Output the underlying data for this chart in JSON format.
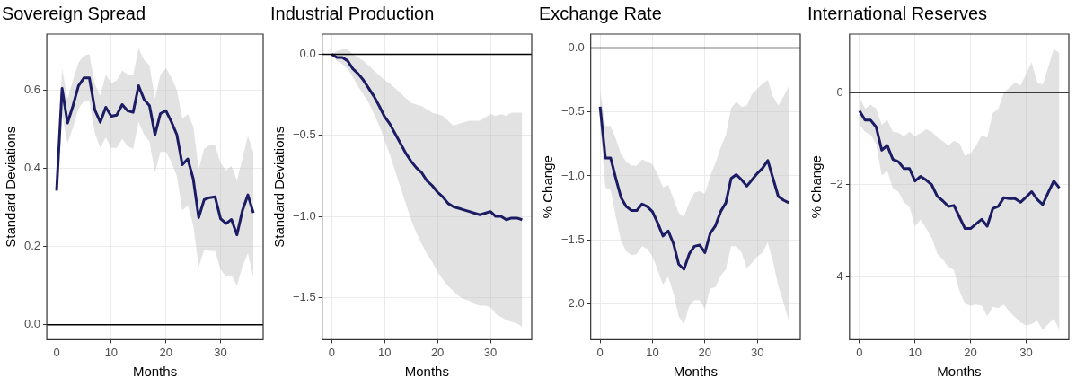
{
  "chart_data": [
    {
      "type": "line",
      "title": "Sovereign Spread",
      "xlabel": "Months",
      "ylabel": "Standard Deviations",
      "grid": true,
      "x": [
        0,
        1,
        2,
        3,
        4,
        5,
        6,
        7,
        8,
        9,
        10,
        11,
        12,
        13,
        14,
        15,
        16,
        17,
        18,
        19,
        20,
        21,
        22,
        23,
        24,
        25,
        26,
        27,
        28,
        29,
        30,
        31,
        32,
        33,
        34,
        35,
        36
      ],
      "series": [
        {
          "color": "#1c1c64",
          "values": [
            0.343,
            0.604,
            0.516,
            0.56,
            0.611,
            0.631,
            0.631,
            0.549,
            0.518,
            0.556,
            0.533,
            0.536,
            0.563,
            0.547,
            0.543,
            0.611,
            0.576,
            0.56,
            0.486,
            0.54,
            0.547,
            0.519,
            0.486,
            0.409,
            0.424,
            0.373,
            0.274,
            0.32,
            0.325,
            0.327,
            0.271,
            0.259,
            0.269,
            0.23,
            0.292,
            0.332,
            0.286
          ],
          "upper": [
            0.36,
            0.655,
            0.578,
            0.626,
            0.67,
            0.688,
            0.692,
            0.615,
            0.585,
            0.64,
            0.618,
            0.624,
            0.65,
            0.64,
            0.638,
            0.707,
            0.677,
            0.663,
            0.578,
            0.64,
            0.655,
            0.633,
            0.6,
            0.527,
            0.538,
            0.508,
            0.398,
            0.45,
            0.459,
            0.459,
            0.413,
            0.395,
            0.406,
            0.369,
            0.424,
            0.483,
            0.442
          ],
          "lower": [
            0.33,
            0.534,
            0.464,
            0.505,
            0.552,
            0.572,
            0.571,
            0.49,
            0.452,
            0.479,
            0.452,
            0.452,
            0.475,
            0.457,
            0.45,
            0.519,
            0.486,
            0.468,
            0.389,
            0.442,
            0.442,
            0.417,
            0.38,
            0.292,
            0.306,
            0.255,
            0.149,
            0.191,
            0.189,
            0.189,
            0.142,
            0.123,
            0.127,
            0.1,
            0.149,
            0.183,
            0.123
          ]
        }
      ],
      "xlim": [
        -1.8,
        37.8
      ],
      "ylim": [
        -0.038,
        0.743
      ],
      "xticks": [
        0,
        10,
        20,
        30
      ],
      "yticks": [
        {
          "value": 0,
          "label": "0.0"
        },
        {
          "value": 0.2,
          "label": "0.2"
        },
        {
          "value": 0.4,
          "label": "0.4"
        },
        {
          "value": 0.6,
          "label": "0.6"
        }
      ],
      "ref_lines": [
        {
          "axis": "y",
          "value": 0,
          "color": "#000000"
        }
      ]
    },
    {
      "type": "line",
      "title": "Industrial Production",
      "xlabel": "Months",
      "ylabel": "Standard Deviations",
      "grid": true,
      "x": [
        0,
        1,
        2,
        3,
        4,
        5,
        6,
        7,
        8,
        9,
        10,
        11,
        12,
        13,
        14,
        15,
        16,
        17,
        18,
        19,
        20,
        21,
        22,
        23,
        24,
        25,
        26,
        27,
        28,
        29,
        30,
        31,
        32,
        33,
        34,
        35,
        36
      ],
      "series": [
        {
          "color": "#1c1c64",
          "values": [
            0,
            -0.02,
            -0.02,
            -0.04,
            -0.09,
            -0.12,
            -0.16,
            -0.21,
            -0.26,
            -0.32,
            -0.385,
            -0.43,
            -0.49,
            -0.55,
            -0.61,
            -0.66,
            -0.7,
            -0.73,
            -0.78,
            -0.81,
            -0.85,
            -0.88,
            -0.92,
            -0.94,
            -0.95,
            -0.96,
            -0.97,
            -0.98,
            -0.99,
            -0.98,
            -0.97,
            -1.0,
            -1.0,
            -1.02,
            -1.01,
            -1.01,
            -1.02
          ],
          "upper": [
            0,
            0.02,
            0.03,
            0.03,
            0,
            -0.02,
            -0.04,
            -0.07,
            -0.1,
            -0.13,
            -0.16,
            -0.18,
            -0.21,
            -0.24,
            -0.27,
            -0.3,
            -0.31,
            -0.32,
            -0.34,
            -0.36,
            -0.37,
            -0.38,
            -0.41,
            -0.44,
            -0.43,
            -0.42,
            -0.41,
            -0.41,
            -0.41,
            -0.39,
            -0.37,
            -0.38,
            -0.37,
            -0.38,
            -0.36,
            -0.36,
            -0.36
          ],
          "lower": [
            0,
            -0.04,
            -0.06,
            -0.09,
            -0.14,
            -0.2,
            -0.25,
            -0.3,
            -0.37,
            -0.44,
            -0.53,
            -0.62,
            -0.72,
            -0.82,
            -0.92,
            -1.02,
            -1.1,
            -1.17,
            -1.23,
            -1.28,
            -1.34,
            -1.39,
            -1.43,
            -1.46,
            -1.49,
            -1.51,
            -1.52,
            -1.54,
            -1.55,
            -1.55,
            -1.56,
            -1.6,
            -1.62,
            -1.64,
            -1.65,
            -1.66,
            -1.68
          ]
        }
      ],
      "xlim": [
        -1.8,
        37.8
      ],
      "ylim": [
        -1.76,
        0.124
      ],
      "xticks": [
        0,
        10,
        20,
        30
      ],
      "yticks": [
        {
          "value": -1.5,
          "label": "−1.5"
        },
        {
          "value": -1,
          "label": "−1.0"
        },
        {
          "value": -0.5,
          "label": "−0.5"
        },
        {
          "value": 0,
          "label": "0.0"
        }
      ],
      "ref_lines": [
        {
          "axis": "y",
          "value": 0,
          "color": "#000000"
        }
      ]
    },
    {
      "type": "line",
      "title": "Exchange Rate",
      "xlabel": "Months",
      "ylabel": "% Change",
      "grid": true,
      "x": [
        0,
        1,
        2,
        3,
        4,
        5,
        6,
        7,
        8,
        9,
        10,
        11,
        12,
        13,
        14,
        15,
        16,
        17,
        18,
        19,
        20,
        21,
        22,
        23,
        24,
        25,
        26,
        27,
        28,
        29,
        30,
        31,
        32,
        33,
        34,
        35,
        36
      ],
      "series": [
        {
          "color": "#1c1c64",
          "values": [
            -0.46,
            -0.86,
            -0.86,
            -1.02,
            -1.17,
            -1.24,
            -1.27,
            -1.27,
            -1.22,
            -1.24,
            -1.28,
            -1.37,
            -1.47,
            -1.43,
            -1.53,
            -1.69,
            -1.73,
            -1.61,
            -1.55,
            -1.54,
            -1.6,
            -1.45,
            -1.39,
            -1.28,
            -1.21,
            -1.02,
            -0.99,
            -1.03,
            -1.08,
            -1.03,
            -0.98,
            -0.94,
            -0.88,
            -1.02,
            -1.16,
            -1.19,
            -1.21
          ],
          "upper": [
            -0.33,
            -0.61,
            -0.61,
            -0.71,
            -0.83,
            -0.89,
            -0.92,
            -0.92,
            -0.87,
            -0.89,
            -0.91,
            -0.99,
            -1.09,
            -1.07,
            -1.18,
            -1.29,
            -1.32,
            -1.21,
            -1.13,
            -1.12,
            -1.14,
            -1.0,
            -0.9,
            -0.78,
            -0.68,
            -0.47,
            -0.42,
            -0.46,
            -0.45,
            -0.36,
            -0.32,
            -0.28,
            -0.25,
            -0.38,
            -0.45,
            -0.38,
            -0.3
          ],
          "lower": [
            -0.61,
            -1.09,
            -1.11,
            -1.32,
            -1.51,
            -1.59,
            -1.62,
            -1.61,
            -1.55,
            -1.57,
            -1.63,
            -1.74,
            -1.85,
            -1.79,
            -1.92,
            -2.1,
            -2.16,
            -2.02,
            -1.97,
            -1.97,
            -2.04,
            -1.88,
            -1.87,
            -1.78,
            -1.73,
            -1.55,
            -1.55,
            -1.6,
            -1.72,
            -1.68,
            -1.63,
            -1.6,
            -1.52,
            -1.67,
            -1.86,
            -1.99,
            -2.13
          ]
        }
      ],
      "xlim": [
        -1.8,
        38.2
      ],
      "ylim": [
        -2.28,
        0.108
      ],
      "xticks": [
        0,
        10,
        20,
        30
      ],
      "yticks": [
        {
          "value": -2,
          "label": "−2.0"
        },
        {
          "value": -1.5,
          "label": "−1.5"
        },
        {
          "value": -1,
          "label": "−1.0"
        },
        {
          "value": -0.5,
          "label": "−0.5"
        },
        {
          "value": 0,
          "label": "0.0"
        }
      ],
      "ref_lines": [
        {
          "axis": "y",
          "value": 0,
          "color": "#000000"
        }
      ]
    },
    {
      "type": "line",
      "title": "International Reserves",
      "xlabel": "Months",
      "ylabel": "% Change",
      "grid": true,
      "x": [
        0,
        1,
        2,
        3,
        4,
        5,
        6,
        7,
        8,
        9,
        10,
        11,
        12,
        13,
        14,
        15,
        16,
        17,
        18,
        19,
        20,
        21,
        22,
        23,
        24,
        25,
        26,
        27,
        28,
        29,
        30,
        31,
        32,
        33,
        34,
        35,
        36
      ],
      "series": [
        {
          "color": "#1c1c64",
          "values": [
            -0.4,
            -0.6,
            -0.6,
            -0.75,
            -1.25,
            -1.15,
            -1.45,
            -1.5,
            -1.65,
            -1.65,
            -1.92,
            -1.82,
            -1.9,
            -2.0,
            -2.25,
            -2.35,
            -2.47,
            -2.45,
            -2.7,
            -2.95,
            -2.95,
            -2.85,
            -2.75,
            -2.9,
            -2.52,
            -2.47,
            -2.28,
            -2.3,
            -2.3,
            -2.38,
            -2.27,
            -2.15,
            -2.32,
            -2.43,
            -2.17,
            -1.92,
            -2.07
          ],
          "upper": [
            -0.1,
            -0.35,
            -0.27,
            -0.35,
            -0.7,
            -0.6,
            -0.85,
            -0.87,
            -0.95,
            -0.85,
            -0.95,
            -0.88,
            -0.8,
            -0.85,
            -0.97,
            -1.05,
            -1.15,
            -1.05,
            -1.1,
            -1.37,
            -1.32,
            -1.15,
            -0.93,
            -0.98,
            -0.45,
            -0.35,
            0.0,
            0.1,
            0.22,
            0.15,
            0.4,
            0.65,
            0.22,
            0.17,
            0.55,
            0.95,
            0.85
          ],
          "lower": [
            -0.7,
            -0.85,
            -0.92,
            -1.12,
            -1.8,
            -1.7,
            -2.08,
            -2.15,
            -2.38,
            -2.48,
            -2.9,
            -2.76,
            -2.95,
            -3.15,
            -3.5,
            -3.62,
            -3.78,
            -3.85,
            -4.3,
            -4.58,
            -4.62,
            -4.6,
            -4.62,
            -4.85,
            -4.65,
            -4.67,
            -4.6,
            -4.75,
            -4.87,
            -4.98,
            -5.05,
            -5.02,
            -4.95,
            -5.15,
            -5.02,
            -4.9,
            -5.15
          ]
        }
      ],
      "xlim": [
        -1.8,
        37.7
      ],
      "ylim": [
        -5.36,
        1.265
      ],
      "xticks": [
        0,
        10,
        20,
        30
      ],
      "yticks": [
        {
          "value": -4,
          "label": "−4"
        },
        {
          "value": -2,
          "label": "−2"
        },
        {
          "value": 0,
          "label": "0"
        }
      ],
      "ref_lines": [
        {
          "axis": "y",
          "value": 0,
          "color": "#000000"
        }
      ]
    }
  ]
}
